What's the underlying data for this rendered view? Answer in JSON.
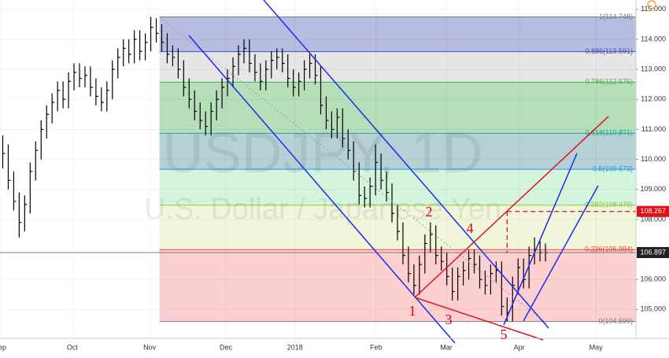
{
  "chart_data": {
    "type": "ohlc",
    "title": "USDJPY, 1D",
    "subtitle": "U.S. Dollar / Japanese Yen",
    "color": "#000000",
    "high": [
      110.8,
      110.5,
      109.6,
      108.9,
      108.8,
      109.9,
      110.6,
      111.3,
      111.8,
      112.2,
      112.6,
      112.6,
      112.9,
      113.2,
      113.2,
      113.1,
      113.1,
      112.7,
      112.4,
      112.6,
      113.3,
      113.7,
      114.0,
      114.0,
      114.3,
      114.3,
      114.2,
      114.75,
      114.7,
      114.5,
      114.2,
      113.8,
      113.7,
      113.3,
      112.7,
      112.3,
      111.9,
      111.6,
      111.9,
      112.3,
      112.7,
      113.0,
      113.4,
      113.8,
      114.0,
      114.0,
      113.5,
      113.2,
      113.3,
      113.6,
      113.7,
      113.7,
      113.5,
      113.0,
      112.9,
      113.3,
      113.5,
      113.5,
      113.1,
      112.1,
      111.6,
      111.7,
      111.7,
      111.0,
      110.6,
      109.9,
      109.1,
      109.4,
      110.5,
      110.2,
      109.6,
      109.2,
      108.5,
      107.9,
      107.1,
      106.5,
      106.8,
      107.5,
      107.9,
      107.8,
      107.1,
      106.9,
      106.4,
      106.4,
      106.6,
      107.0,
      107.0,
      106.8,
      106.3,
      106.5,
      106.6,
      106.6,
      105.4,
      106.1,
      106.7,
      106.7,
      107.1,
      107.4,
      107.3,
      107.2
    ],
    "low": [
      109.7,
      109.0,
      108.3,
      107.4,
      107.6,
      108.2,
      109.3,
      110.0,
      110.7,
      111.2,
      111.6,
      111.7,
      111.7,
      112.3,
      112.4,
      112.4,
      112.1,
      111.8,
      111.6,
      111.6,
      112.0,
      112.7,
      113.1,
      113.2,
      113.2,
      113.3,
      113.3,
      113.6,
      113.9,
      113.6,
      113.2,
      113.1,
      112.7,
      112.1,
      111.7,
      111.3,
      111.0,
      110.8,
      110.8,
      111.3,
      111.7,
      112.1,
      112.4,
      112.8,
      113.2,
      112.9,
      112.6,
      112.3,
      112.3,
      112.7,
      113.0,
      112.9,
      112.4,
      112.1,
      112.1,
      112.3,
      112.7,
      112.5,
      111.5,
      111.0,
      110.7,
      110.7,
      110.4,
      110.0,
      109.3,
      108.5,
      108.4,
      108.4,
      108.8,
      109.0,
      108.6,
      107.9,
      107.3,
      106.5,
      105.9,
      105.5,
      105.5,
      106.2,
      106.9,
      106.5,
      106.3,
      105.8,
      105.3,
      105.3,
      105.8,
      106.0,
      106.2,
      105.7,
      105.5,
      105.5,
      105.9,
      104.8,
      104.6,
      104.6,
      105.5,
      105.7,
      105.7,
      106.5,
      106.6,
      106.6
    ],
    "close": [
      110.2,
      109.3,
      108.6,
      107.9,
      108.5,
      109.6,
      110.3,
      111.0,
      111.5,
      111.9,
      112.3,
      112.0,
      112.6,
      112.9,
      112.7,
      112.8,
      112.4,
      112.1,
      111.9,
      112.3,
      113.0,
      113.4,
      113.7,
      113.5,
      114.0,
      113.6,
      113.9,
      114.4,
      114.2,
      113.9,
      113.5,
      113.4,
      113.0,
      112.4,
      112.0,
      111.6,
      111.3,
      111.1,
      111.6,
      112.0,
      112.4,
      112.7,
      113.1,
      113.5,
      113.7,
      113.2,
      112.9,
      112.6,
      113.0,
      113.3,
      113.4,
      113.2,
      112.7,
      112.4,
      112.6,
      113.0,
      113.2,
      112.8,
      111.8,
      111.3,
      111.0,
      111.4,
      110.7,
      110.3,
      109.6,
      108.8,
      108.7,
      109.1,
      109.9,
      109.3,
      108.9,
      108.2,
      107.6,
      106.8,
      106.2,
      105.8,
      106.5,
      107.2,
      107.5,
      106.8,
      106.6,
      106.1,
      105.6,
      106.1,
      106.3,
      106.7,
      106.5,
      106.0,
      105.8,
      106.2,
      106.3,
      105.1,
      104.9,
      105.8,
      106.4,
      106.0,
      106.8,
      107.0,
      106.9,
      106.9
    ],
    "xlim": [
      -0.5,
      115.5
    ],
    "xticks": [
      {
        "value": -0.5,
        "label": "Sep"
      },
      {
        "value": 12.7,
        "label": "Oct"
      },
      {
        "value": 26.8,
        "label": "Nov"
      },
      {
        "value": 40.7,
        "label": "Dec"
      },
      {
        "value": 53.3,
        "label": "2018"
      },
      {
        "value": 68.1,
        "label": "Feb"
      },
      {
        "value": 80.9,
        "label": "Mar"
      },
      {
        "value": 94.2,
        "label": "Apr"
      },
      {
        "value": 108.2,
        "label": "May"
      }
    ],
    "ylim": [
      104.04,
      115.31
    ],
    "yticks": [
      {
        "value": 115,
        "label": "115.000"
      },
      {
        "value": 114,
        "label": "114.000"
      },
      {
        "value": 113,
        "label": "113.000"
      },
      {
        "value": 112,
        "label": "112.000"
      },
      {
        "value": 111,
        "label": "111.000"
      },
      {
        "value": 110,
        "label": "110.000"
      },
      {
        "value": 109,
        "label": "109.000"
      },
      {
        "value": 108,
        "label": "108.000"
      },
      {
        "value": 106,
        "label": "106.000"
      },
      {
        "value": 105,
        "label": "105.000"
      }
    ],
    "grid": true,
    "fib_x": [
      28.6,
      115.5
    ],
    "fib_levels": [
      {
        "value": 114.748,
        "label": "1(114.748)",
        "color": "#787b86",
        "fill": "#aab0dc"
      },
      {
        "value": 113.591,
        "label": "0.886(113.591)",
        "color": "#3f51b5",
        "fill": "#e2e2e2"
      },
      {
        "value": 112.576,
        "label": "0.786(112.576)",
        "color": "#4caf50",
        "fill": "#a9d8ad"
      },
      {
        "value": 110.871,
        "label": "0.618(110.871)",
        "color": "#26a69a",
        "fill": "#a9c9cf"
      },
      {
        "value": 109.673,
        "label": "0.5(109.673)",
        "color": "#2196f3",
        "fill": "#cdf2d6"
      },
      {
        "value": 108.476,
        "label": "0.382(108.476)",
        "color": "#8bc34a",
        "fill": "#eef4d4"
      },
      {
        "value": 106.994,
        "label": "0.236(106.994)",
        "color": "#f44336",
        "fill": "#fbc8c8"
      },
      {
        "value": 104.599,
        "label": "0(104.599)",
        "color": "#787b86"
      }
    ],
    "last_price": 106.897,
    "target_price": 108.267,
    "wave_labels": [
      "1",
      "2",
      "3",
      "4",
      "5"
    ]
  }
}
